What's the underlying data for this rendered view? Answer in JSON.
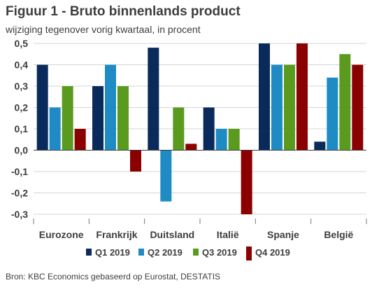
{
  "title": "Figuur 1 - Bruto binnenlands product",
  "subtitle": "wijziging tegenover vorig kwartaal, in procent",
  "source": "Bron: KBC Economics gebaseerd op Eurostat, DESTATIS",
  "chart_data": {
    "type": "bar",
    "categories": [
      "Eurozone",
      "Frankrijk",
      "Duitsland",
      "Italië",
      "Spanje",
      "België"
    ],
    "series": [
      {
        "name": "Q1 2019",
        "color": "#0b2a5c",
        "values": [
          0.4,
          0.3,
          0.48,
          0.2,
          0.5,
          0.04
        ]
      },
      {
        "name": "Q2 2019",
        "color": "#1f8bc4",
        "values": [
          0.2,
          0.4,
          -0.24,
          0.1,
          0.4,
          0.34
        ]
      },
      {
        "name": "Q3 2019",
        "color": "#5a9a1e",
        "values": [
          0.3,
          0.3,
          0.2,
          0.1,
          0.4,
          0.45
        ]
      },
      {
        "name": "Q4 2019",
        "color": "#8b0000",
        "values": [
          0.1,
          -0.1,
          0.03,
          -0.3,
          0.5,
          0.4
        ]
      }
    ],
    "ylim": [
      -0.3,
      0.5
    ],
    "yticks": [
      "0,5",
      "0,4",
      "0,3",
      "0,2",
      "0,1",
      "0,0",
      "-0,1",
      "-0,2",
      "-0,3"
    ],
    "ytick_values": [
      0.5,
      0.4,
      0.3,
      0.2,
      0.1,
      0.0,
      -0.1,
      -0.2,
      -0.3
    ],
    "grid": true,
    "legend_position": "bottom"
  }
}
